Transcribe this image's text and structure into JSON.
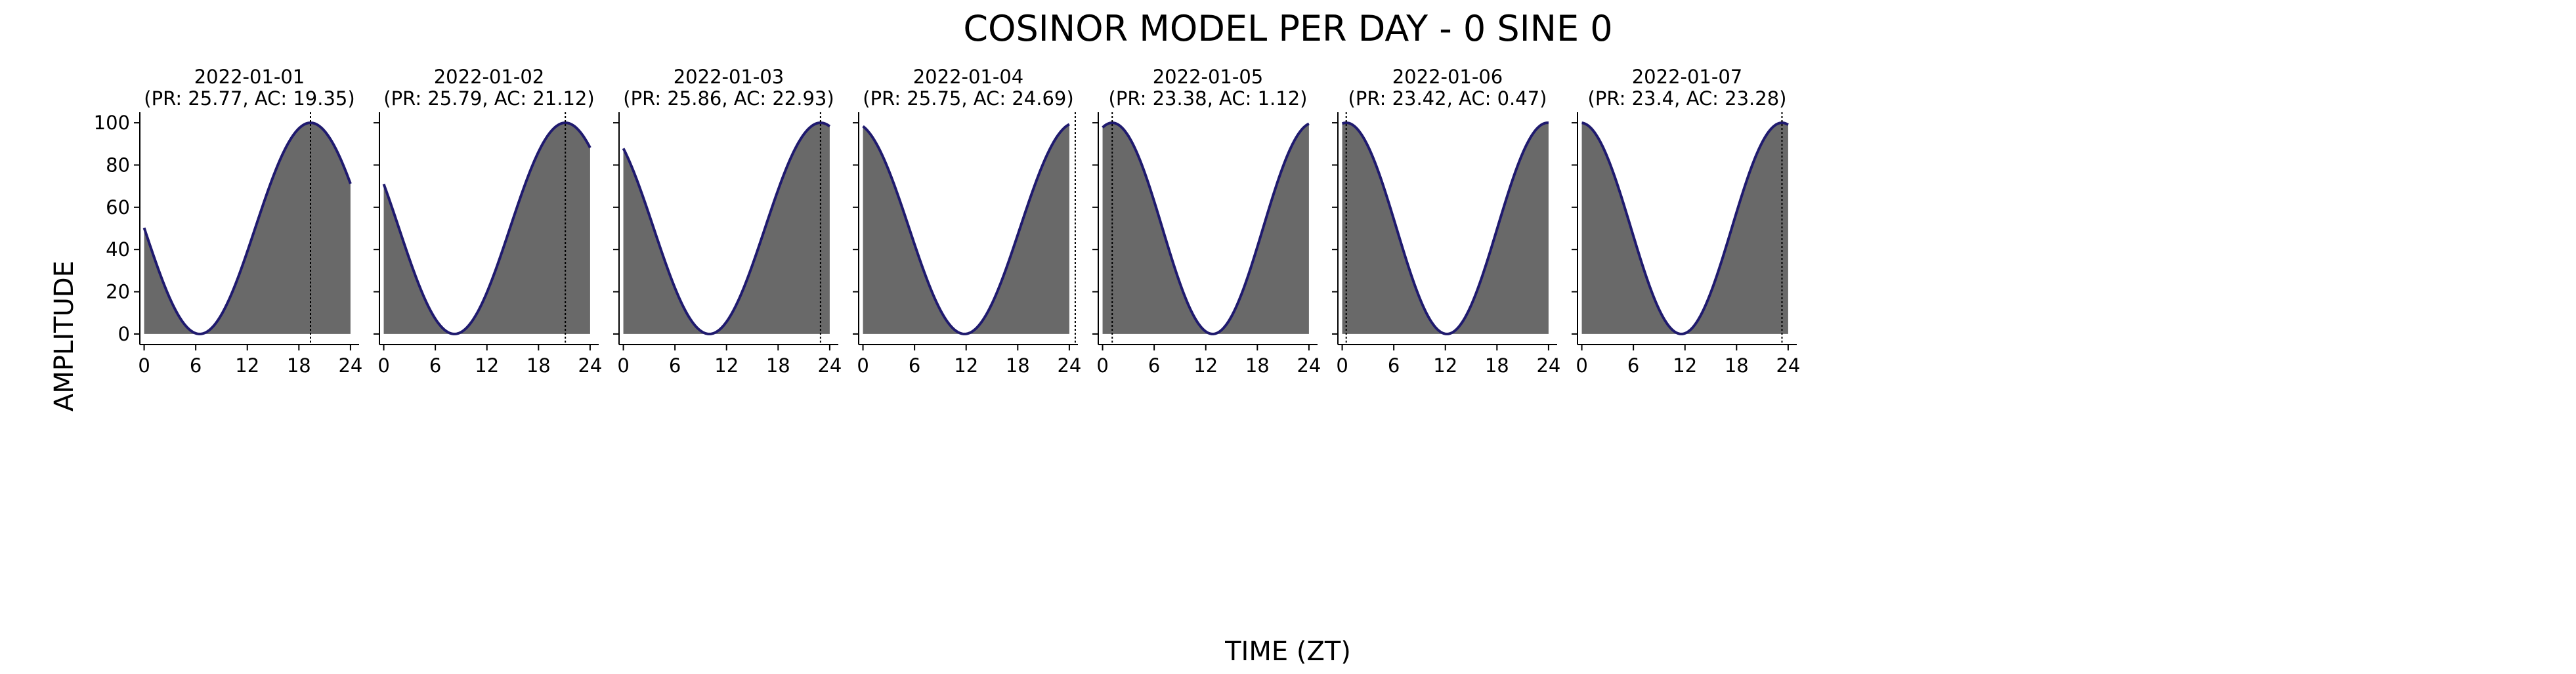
{
  "figure": {
    "title": "COSINOR MODEL PER DAY - 0 SINE 0",
    "xlabel": "TIME (ZT)",
    "ylabel": "AMPLITUDE"
  },
  "colors": {
    "fill": "#696969",
    "curve": "#1f1a6e",
    "acrophase_line": "#000000",
    "axis": "#000000"
  },
  "chart_data": [
    {
      "type": "area",
      "title": "2022-01-01",
      "subtitle": "(PR: 25.77, AC: 19.35)",
      "period": 25.77,
      "acrophase": 19.35,
      "x_range": [
        0,
        24
      ],
      "xlim": [
        -0.5,
        25
      ],
      "ylim": [
        -5,
        105
      ],
      "xticks": [
        0,
        6,
        12,
        18,
        24
      ],
      "yticks": [
        0,
        20,
        40,
        60,
        80,
        100
      ],
      "mesor": 50,
      "amplitude": 50,
      "grid": false
    },
    {
      "type": "area",
      "title": "2022-01-02",
      "subtitle": "(PR: 25.79, AC: 21.12)",
      "period": 25.79,
      "acrophase": 21.12,
      "x_range": [
        0,
        24
      ],
      "xlim": [
        -0.5,
        25
      ],
      "ylim": [
        -5,
        105
      ],
      "xticks": [
        0,
        6,
        12,
        18,
        24
      ],
      "yticks": [
        0,
        20,
        40,
        60,
        80,
        100
      ],
      "mesor": 50,
      "amplitude": 50,
      "grid": false
    },
    {
      "type": "area",
      "title": "2022-01-03",
      "subtitle": "(PR: 25.86, AC: 22.93)",
      "period": 25.86,
      "acrophase": 22.93,
      "x_range": [
        0,
        24
      ],
      "xlim": [
        -0.5,
        25
      ],
      "ylim": [
        -5,
        105
      ],
      "xticks": [
        0,
        6,
        12,
        18,
        24
      ],
      "yticks": [
        0,
        20,
        40,
        60,
        80,
        100
      ],
      "mesor": 50,
      "amplitude": 50,
      "grid": false
    },
    {
      "type": "area",
      "title": "2022-01-04",
      "subtitle": "(PR: 25.75, AC: 24.69)",
      "period": 25.75,
      "acrophase": 24.69,
      "x_range": [
        0,
        24
      ],
      "xlim": [
        -0.5,
        25
      ],
      "ylim": [
        -5,
        105
      ],
      "xticks": [
        0,
        6,
        12,
        18,
        24
      ],
      "yticks": [
        0,
        20,
        40,
        60,
        80,
        100
      ],
      "mesor": 50,
      "amplitude": 50,
      "grid": false
    },
    {
      "type": "area",
      "title": "2022-01-05",
      "subtitle": "(PR: 23.38, AC: 1.12)",
      "period": 23.38,
      "acrophase": 1.12,
      "x_range": [
        0,
        24
      ],
      "xlim": [
        -0.5,
        25
      ],
      "ylim": [
        -5,
        105
      ],
      "xticks": [
        0,
        6,
        12,
        18,
        24
      ],
      "yticks": [
        0,
        20,
        40,
        60,
        80,
        100
      ],
      "mesor": 50,
      "amplitude": 50,
      "grid": false
    },
    {
      "type": "area",
      "title": "2022-01-06",
      "subtitle": "(PR: 23.42, AC: 0.47)",
      "period": 23.42,
      "acrophase": 0.47,
      "x_range": [
        0,
        24
      ],
      "xlim": [
        -0.5,
        25
      ],
      "ylim": [
        -5,
        105
      ],
      "xticks": [
        0,
        6,
        12,
        18,
        24
      ],
      "yticks": [
        0,
        20,
        40,
        60,
        80,
        100
      ],
      "mesor": 50,
      "amplitude": 50,
      "grid": false
    },
    {
      "type": "area",
      "title": "2022-01-07",
      "subtitle": "(PR: 23.4, AC: 23.28)",
      "period": 23.4,
      "acrophase": 23.28,
      "x_range": [
        0,
        24
      ],
      "xlim": [
        -0.5,
        25
      ],
      "ylim": [
        -5,
        105
      ],
      "xticks": [
        0,
        6,
        12,
        18,
        24
      ],
      "yticks": [
        0,
        20,
        40,
        60,
        80,
        100
      ],
      "mesor": 50,
      "amplitude": 50,
      "grid": false
    }
  ]
}
